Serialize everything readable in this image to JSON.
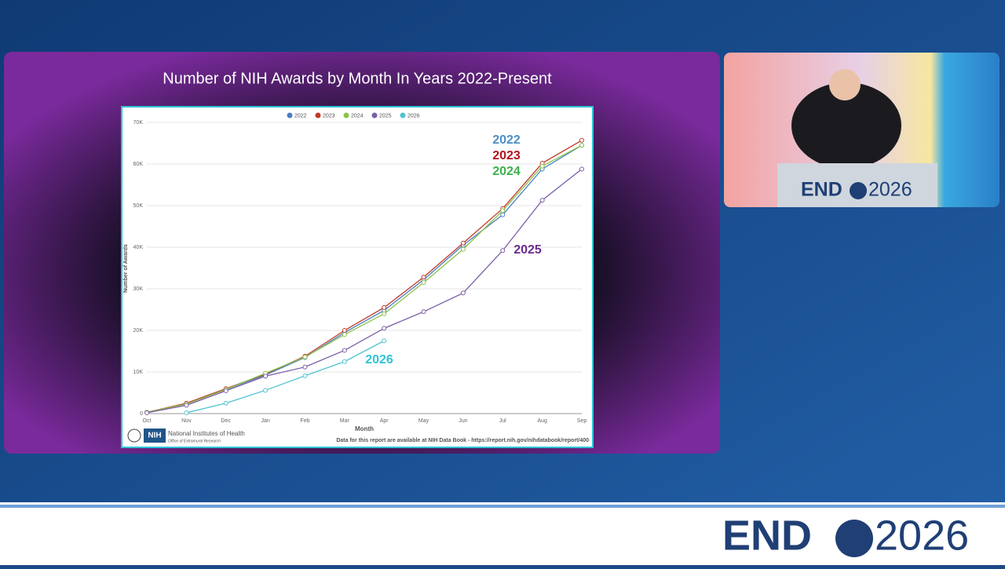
{
  "chart_data": {
    "type": "line",
    "title": "Number of NIH Awards by Month In Years 2022-Present",
    "x_label": "Month",
    "y_label": "Number of Awards",
    "categories": [
      "Oct",
      "Nov",
      "Dec",
      "Jan",
      "Feb",
      "Mar",
      "Apr",
      "May",
      "Jun",
      "Jul",
      "Aug",
      "Sep"
    ],
    "series": [
      {
        "name": "2022",
        "color": "#4a7fc1",
        "values": [
          300,
          2300,
          5800,
          9300,
          13500,
          19500,
          24800,
          32200,
          40500,
          47800,
          58800,
          64500
        ]
      },
      {
        "name": "2023",
        "color": "#c0392b",
        "values": [
          300,
          2500,
          6000,
          9500,
          13800,
          20000,
          25500,
          32800,
          41000,
          49300,
          60200,
          65700
        ]
      },
      {
        "name": "2024",
        "color": "#8bc34a",
        "values": [
          300,
          2300,
          5800,
          9700,
          13600,
          19000,
          24000,
          31500,
          39500,
          48800,
          59500,
          64500
        ]
      },
      {
        "name": "2025",
        "color": "#7b5ea7",
        "values": [
          200,
          2000,
          5500,
          9000,
          11200,
          15200,
          20500,
          24500,
          29000,
          39200,
          51300,
          58800
        ]
      },
      {
        "name": "2026",
        "color": "#4fc3d0",
        "values": [
          null,
          200,
          2500,
          5600,
          9100,
          12500,
          17500,
          null,
          null,
          null,
          null,
          null
        ]
      }
    ],
    "ylim": [
      0,
      70000
    ],
    "yticks": [
      0,
      {
        "value": 10000,
        "label": "10K"
      },
      {
        "value": 20000,
        "label": "20K"
      },
      {
        "value": 30000,
        "label": "30K"
      },
      {
        "value": 40000,
        "label": "40K"
      },
      {
        "value": 50000,
        "label": "50K"
      },
      {
        "value": 60000,
        "label": "60K"
      },
      {
        "value": 70000,
        "label": "70K"
      }
    ],
    "grid": true,
    "legend": "top",
    "annotations": [
      {
        "text": "2022",
        "color": "#4a90c8"
      },
      {
        "text": "2023",
        "color": "#b5121b"
      },
      {
        "text": "2024",
        "color": "#3cb04a"
      },
      {
        "text": "2025",
        "color": "#6a2c8f"
      },
      {
        "text": "2026",
        "color": "#2ec4d6"
      }
    ],
    "source_note": "Data for this report are available at NIH Data Book - https://report.nih.gov/nihdatabook/report/400",
    "logo": {
      "mark": "NIH",
      "name": "National Institutes of Health",
      "office": "Office of Extramural Research"
    }
  },
  "branding": {
    "name": "END",
    "year": "2026"
  }
}
